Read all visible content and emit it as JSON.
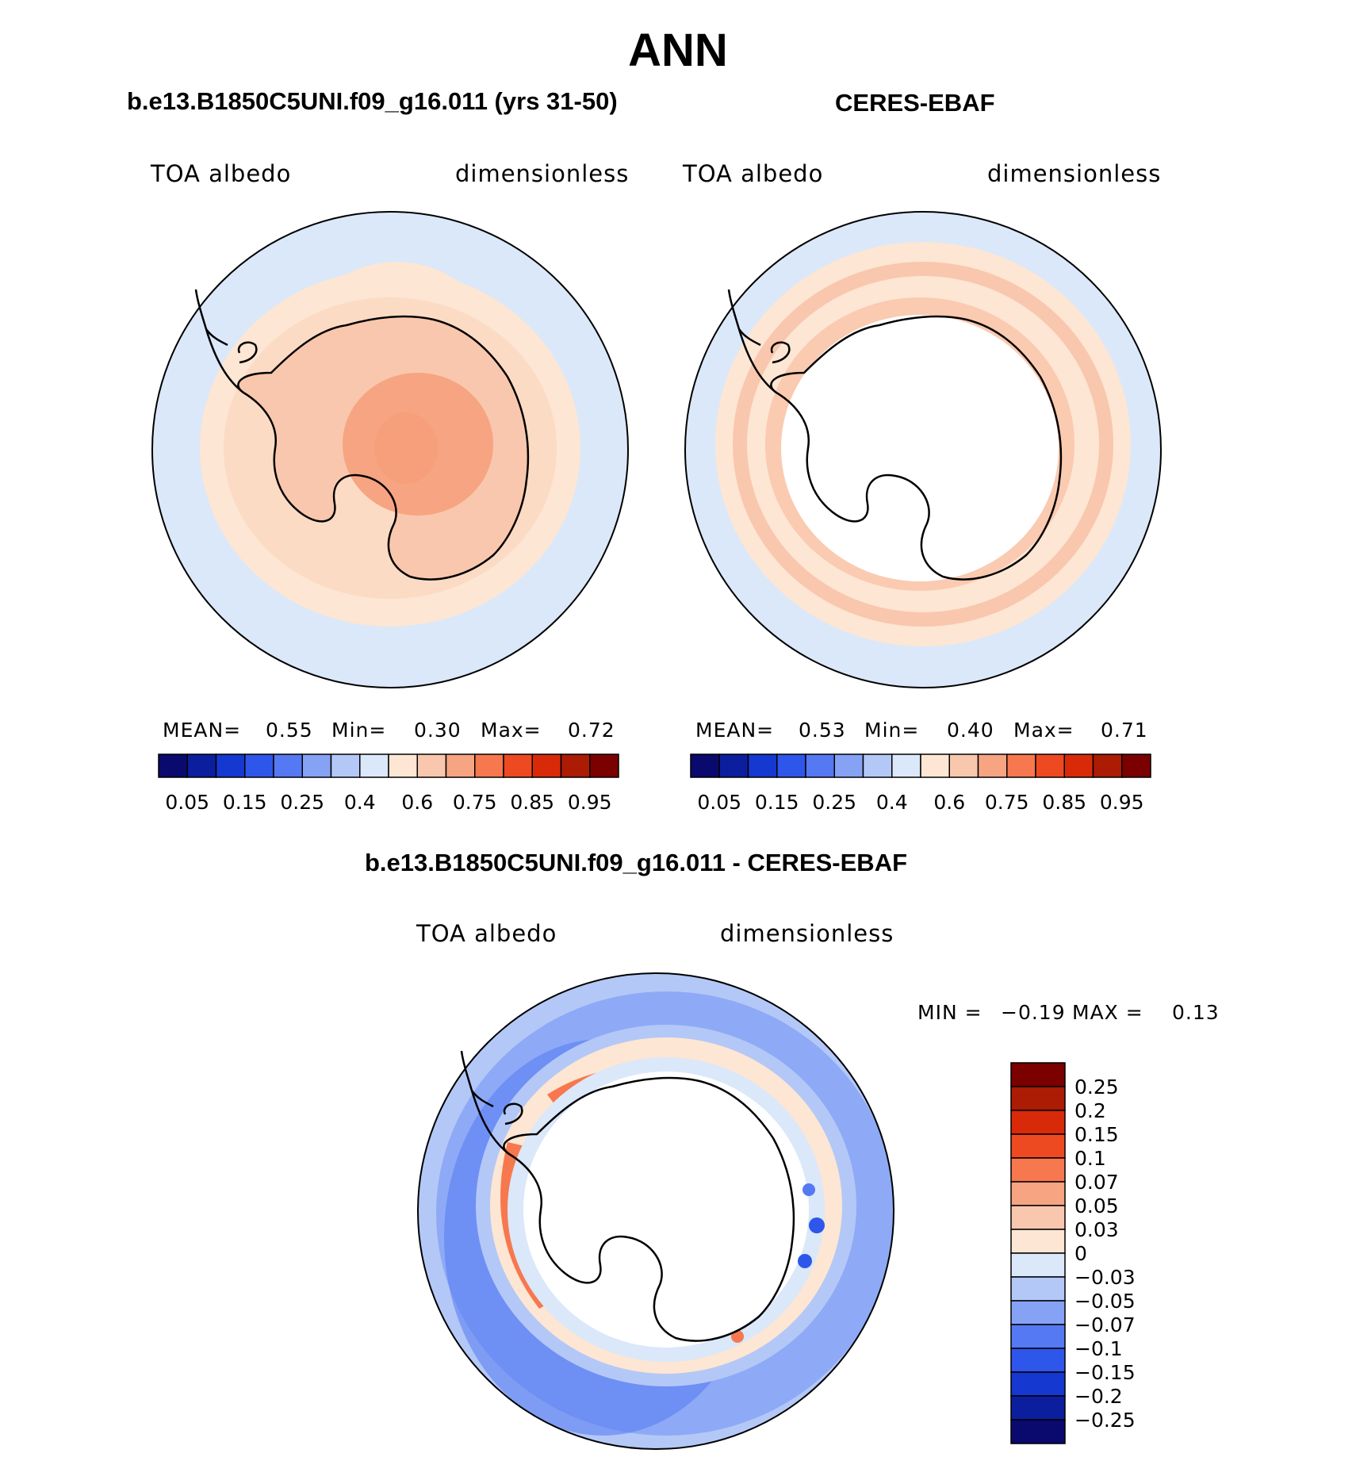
{
  "figure": {
    "title": "ANN"
  },
  "panels": [
    {
      "header": "b.e13.B1850C5UNI.f09_g16.011 (yrs 31-50)",
      "variable": "TOA albedo",
      "units": "dimensionless",
      "stats": {
        "mean_label": "MEAN=",
        "mean": "0.55",
        "min_label": "Min=",
        "min": "0.30",
        "max_label": "Max=",
        "max": "0.72"
      },
      "scheme": "model"
    },
    {
      "header": "CERES-EBAF",
      "variable": "TOA albedo",
      "units": "dimensionless",
      "stats": {
        "mean_label": "MEAN=",
        "mean": "0.53",
        "min_label": "Min=",
        "min": "0.40",
        "max_label": "Max=",
        "max": "0.71"
      },
      "scheme": "obs"
    }
  ],
  "diff_panel": {
    "header": "b.e13.B1850C5UNI.f09_g16.011 - CERES-EBAF",
    "variable": "TOA albedo",
    "units": "dimensionless",
    "stats": {
      "min_label": "MIN =",
      "min": "−0.19",
      "max_label": "MAX =",
      "max": "0.13"
    }
  },
  "colorbar_horizontal": {
    "colors": [
      "#0a0a6e",
      "#0b1f9e",
      "#1538d0",
      "#2f56ea",
      "#5479f2",
      "#85a2f5",
      "#b3c8f7",
      "#dae8f9",
      "#fde6d3",
      "#f9c7ad",
      "#f7a482",
      "#f7784e",
      "#ee4a22",
      "#d82a09",
      "#ac1b04",
      "#7b0000"
    ],
    "labels": [
      "0.05",
      "0.15",
      "0.25",
      "0.4",
      "0.6",
      "0.75",
      "0.85",
      "0.95"
    ]
  },
  "colorbar_vertical": {
    "colors": [
      "#7b0000",
      "#ac1b04",
      "#d82a09",
      "#ee4a22",
      "#f7784e",
      "#f7a482",
      "#f9c7ad",
      "#fde6d3",
      "#dae8f9",
      "#b3c8f7",
      "#85a2f5",
      "#5479f2",
      "#2f56ea",
      "#1538d0",
      "#0b1f9e",
      "#0a0a6e"
    ],
    "labels": [
      "0.25",
      "0.2",
      "0.15",
      "0.1",
      "0.07",
      "0.05",
      "0.03",
      "0",
      "−0.03",
      "−0.05",
      "−0.07",
      "−0.1",
      "−0.15",
      "−0.2",
      "−0.25"
    ]
  }
}
